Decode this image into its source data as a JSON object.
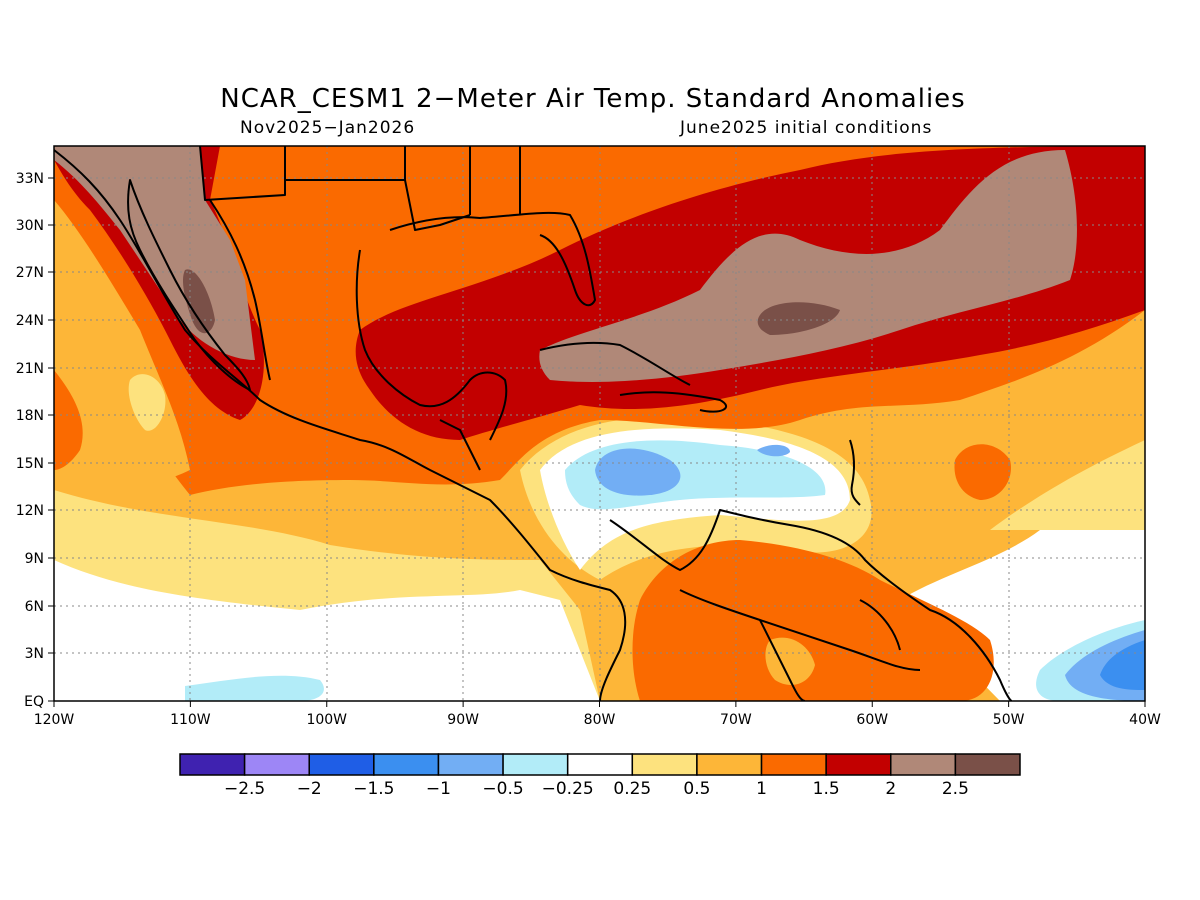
{
  "title": "NCAR_CESM1 2−Meter Air Temp. Standard Anomalies",
  "subtitle_left": "Nov2025−Jan2026",
  "subtitle_right": "June2025 initial conditions",
  "lat_labels": [
    "33N",
    "30N",
    "27N",
    "24N",
    "21N",
    "18N",
    "15N",
    "12N",
    "9N",
    "6N",
    "3N",
    "EQ"
  ],
  "lon_labels": [
    "120W",
    "110W",
    "100W",
    "90W",
    "80W",
    "70W",
    "60W",
    "50W",
    "40W"
  ],
  "colorbar": {
    "colors": [
      "#3f22b0",
      "#9d86f6",
      "#1f5ee6",
      "#3b8ff0",
      "#72aef4",
      "#b2ecf8",
      "#ffffff",
      "#fde27e",
      "#fdb638",
      "#fa6a00",
      "#c20000",
      "#b08878",
      "#7a5048"
    ],
    "labels": [
      "−2.5",
      "−2",
      "−1.5",
      "−1",
      "−0.5",
      "−0.25",
      "0.25",
      "0.5",
      "1",
      "1.5",
      "2",
      "2.5"
    ]
  },
  "colors": {
    "white": "#ffffff",
    "lightyellow": "#fde27e",
    "yellow": "#fdb638",
    "orange": "#fa6a00",
    "red": "#c20000",
    "brown": "#b08878",
    "darkbrown": "#7a5048",
    "cyan": "#b2ecf8",
    "lightblue": "#72aef4",
    "midblue": "#3b8ff0"
  }
}
